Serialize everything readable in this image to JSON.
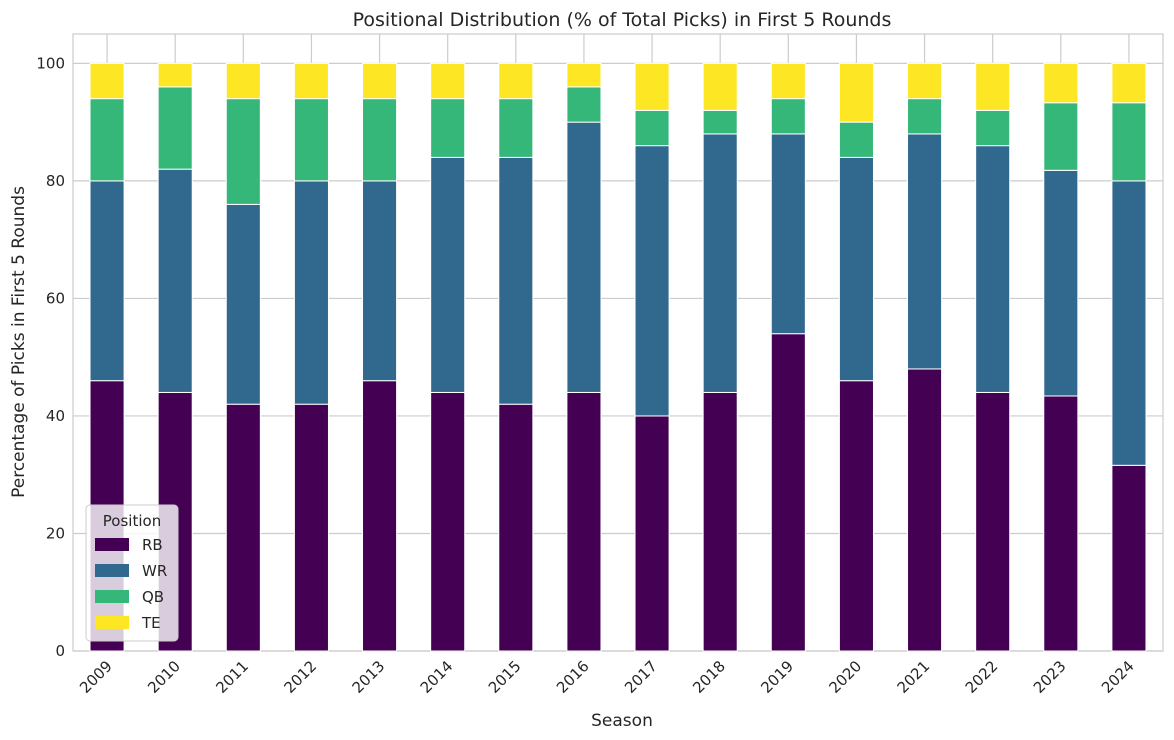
{
  "chart_data": {
    "type": "bar",
    "stacked": true,
    "title": "Positional Distribution (% of Total Picks) in First 5 Rounds",
    "xlabel": "Season",
    "ylabel": "Percentage of Picks in First 5 Rounds",
    "ylim": [
      0,
      105
    ],
    "yticks": [
      0,
      20,
      40,
      60,
      80,
      100
    ],
    "grid": true,
    "legend": {
      "title": "Position",
      "placement": "lower-left"
    },
    "categories": [
      "2009",
      "2010",
      "2011",
      "2012",
      "2013",
      "2014",
      "2015",
      "2016",
      "2017",
      "2018",
      "2019",
      "2020",
      "2021",
      "2022",
      "2023",
      "2024"
    ],
    "series": [
      {
        "name": "RB",
        "color": "#440154",
        "values": [
          46,
          44,
          42,
          42,
          46,
          44,
          42,
          44,
          40,
          44,
          54,
          46,
          48,
          44,
          43.4,
          31.6
        ]
      },
      {
        "name": "WR",
        "color": "#31688e",
        "values": [
          34,
          38,
          34,
          38,
          34,
          40,
          42,
          46,
          46,
          44,
          34,
          38,
          40,
          42,
          38.4,
          48.4
        ]
      },
      {
        "name": "QB",
        "color": "#35b779",
        "values": [
          14,
          14,
          18,
          14,
          14,
          10,
          10,
          6,
          6,
          4,
          6,
          6,
          6,
          6,
          11.5,
          13.3
        ]
      },
      {
        "name": "TE",
        "color": "#fde725",
        "values": [
          6,
          4,
          6,
          6,
          6,
          6,
          6,
          4,
          8,
          8,
          6,
          10,
          6,
          8,
          6.7,
          6.7
        ]
      }
    ]
  }
}
